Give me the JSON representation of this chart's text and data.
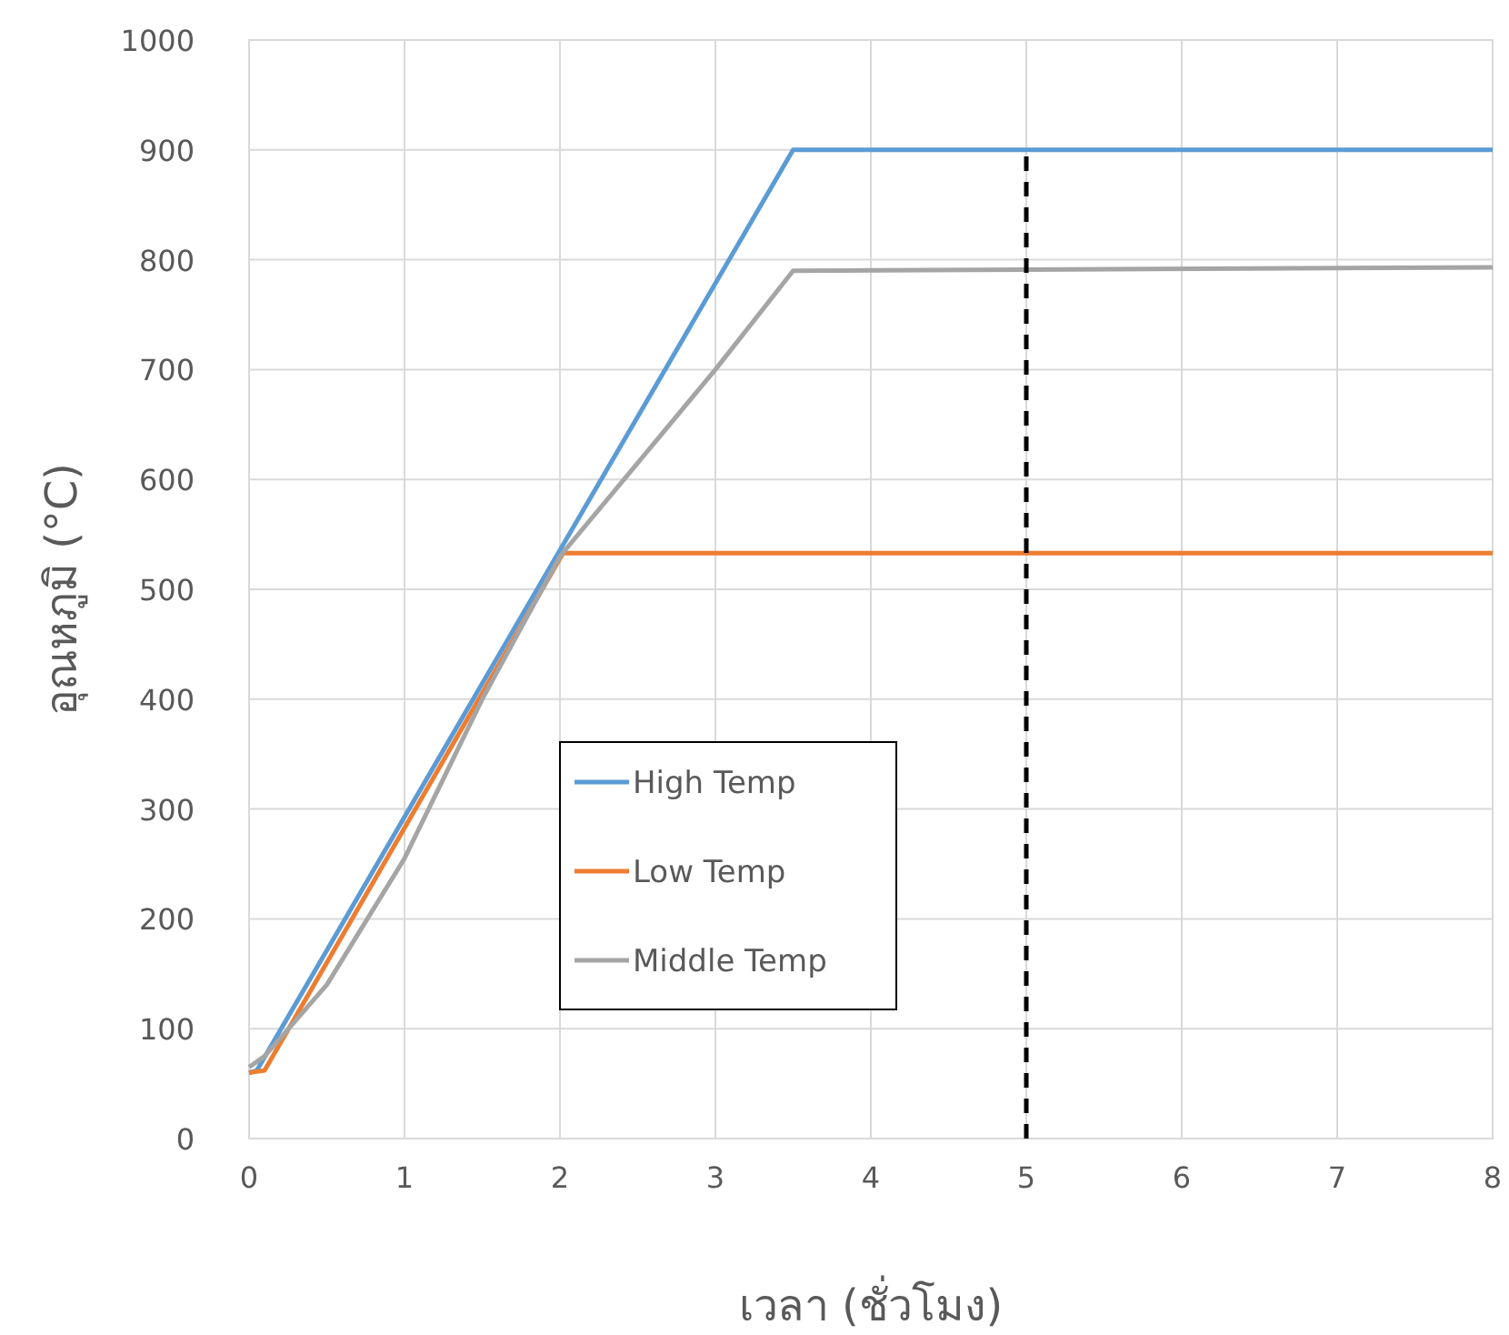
{
  "chart_data": {
    "type": "line",
    "xlabel": "เวลา (ชั่วโมง)",
    "ylabel": "อุณหภูมิ (°C)",
    "xlim": [
      0,
      8
    ],
    "xticks": [
      0,
      1,
      2,
      3,
      4,
      5,
      6,
      7,
      8
    ],
    "ylim": [
      0,
      1000
    ],
    "yticks": [
      0,
      100,
      200,
      300,
      400,
      500,
      600,
      700,
      800,
      900,
      1000
    ],
    "grid": true,
    "legend": "left",
    "series": [
      {
        "name": "High Temp",
        "color": "#5b9bd5",
        "x": [
          0,
          0.05,
          3.5,
          8
        ],
        "values": [
          60,
          62,
          900,
          900
        ]
      },
      {
        "name": "Low Temp",
        "color": "#ed7d31",
        "x": [
          0,
          0.1,
          2.02,
          8
        ],
        "values": [
          60,
          62,
          533,
          533
        ]
      },
      {
        "name": "Middle Temp",
        "color": "#a5a5a5",
        "x": [
          0,
          0.1,
          0.5,
          1,
          1.5,
          2,
          2.5,
          3,
          3.5,
          5,
          8
        ],
        "values": [
          65,
          75,
          140,
          255,
          400,
          530,
          615,
          700,
          790,
          791,
          793
        ]
      },
      {
        "color": "#000000",
        "line_style": "dashed",
        "x": [
          5,
          5
        ],
        "values": [
          0,
          900
        ]
      }
    ]
  }
}
